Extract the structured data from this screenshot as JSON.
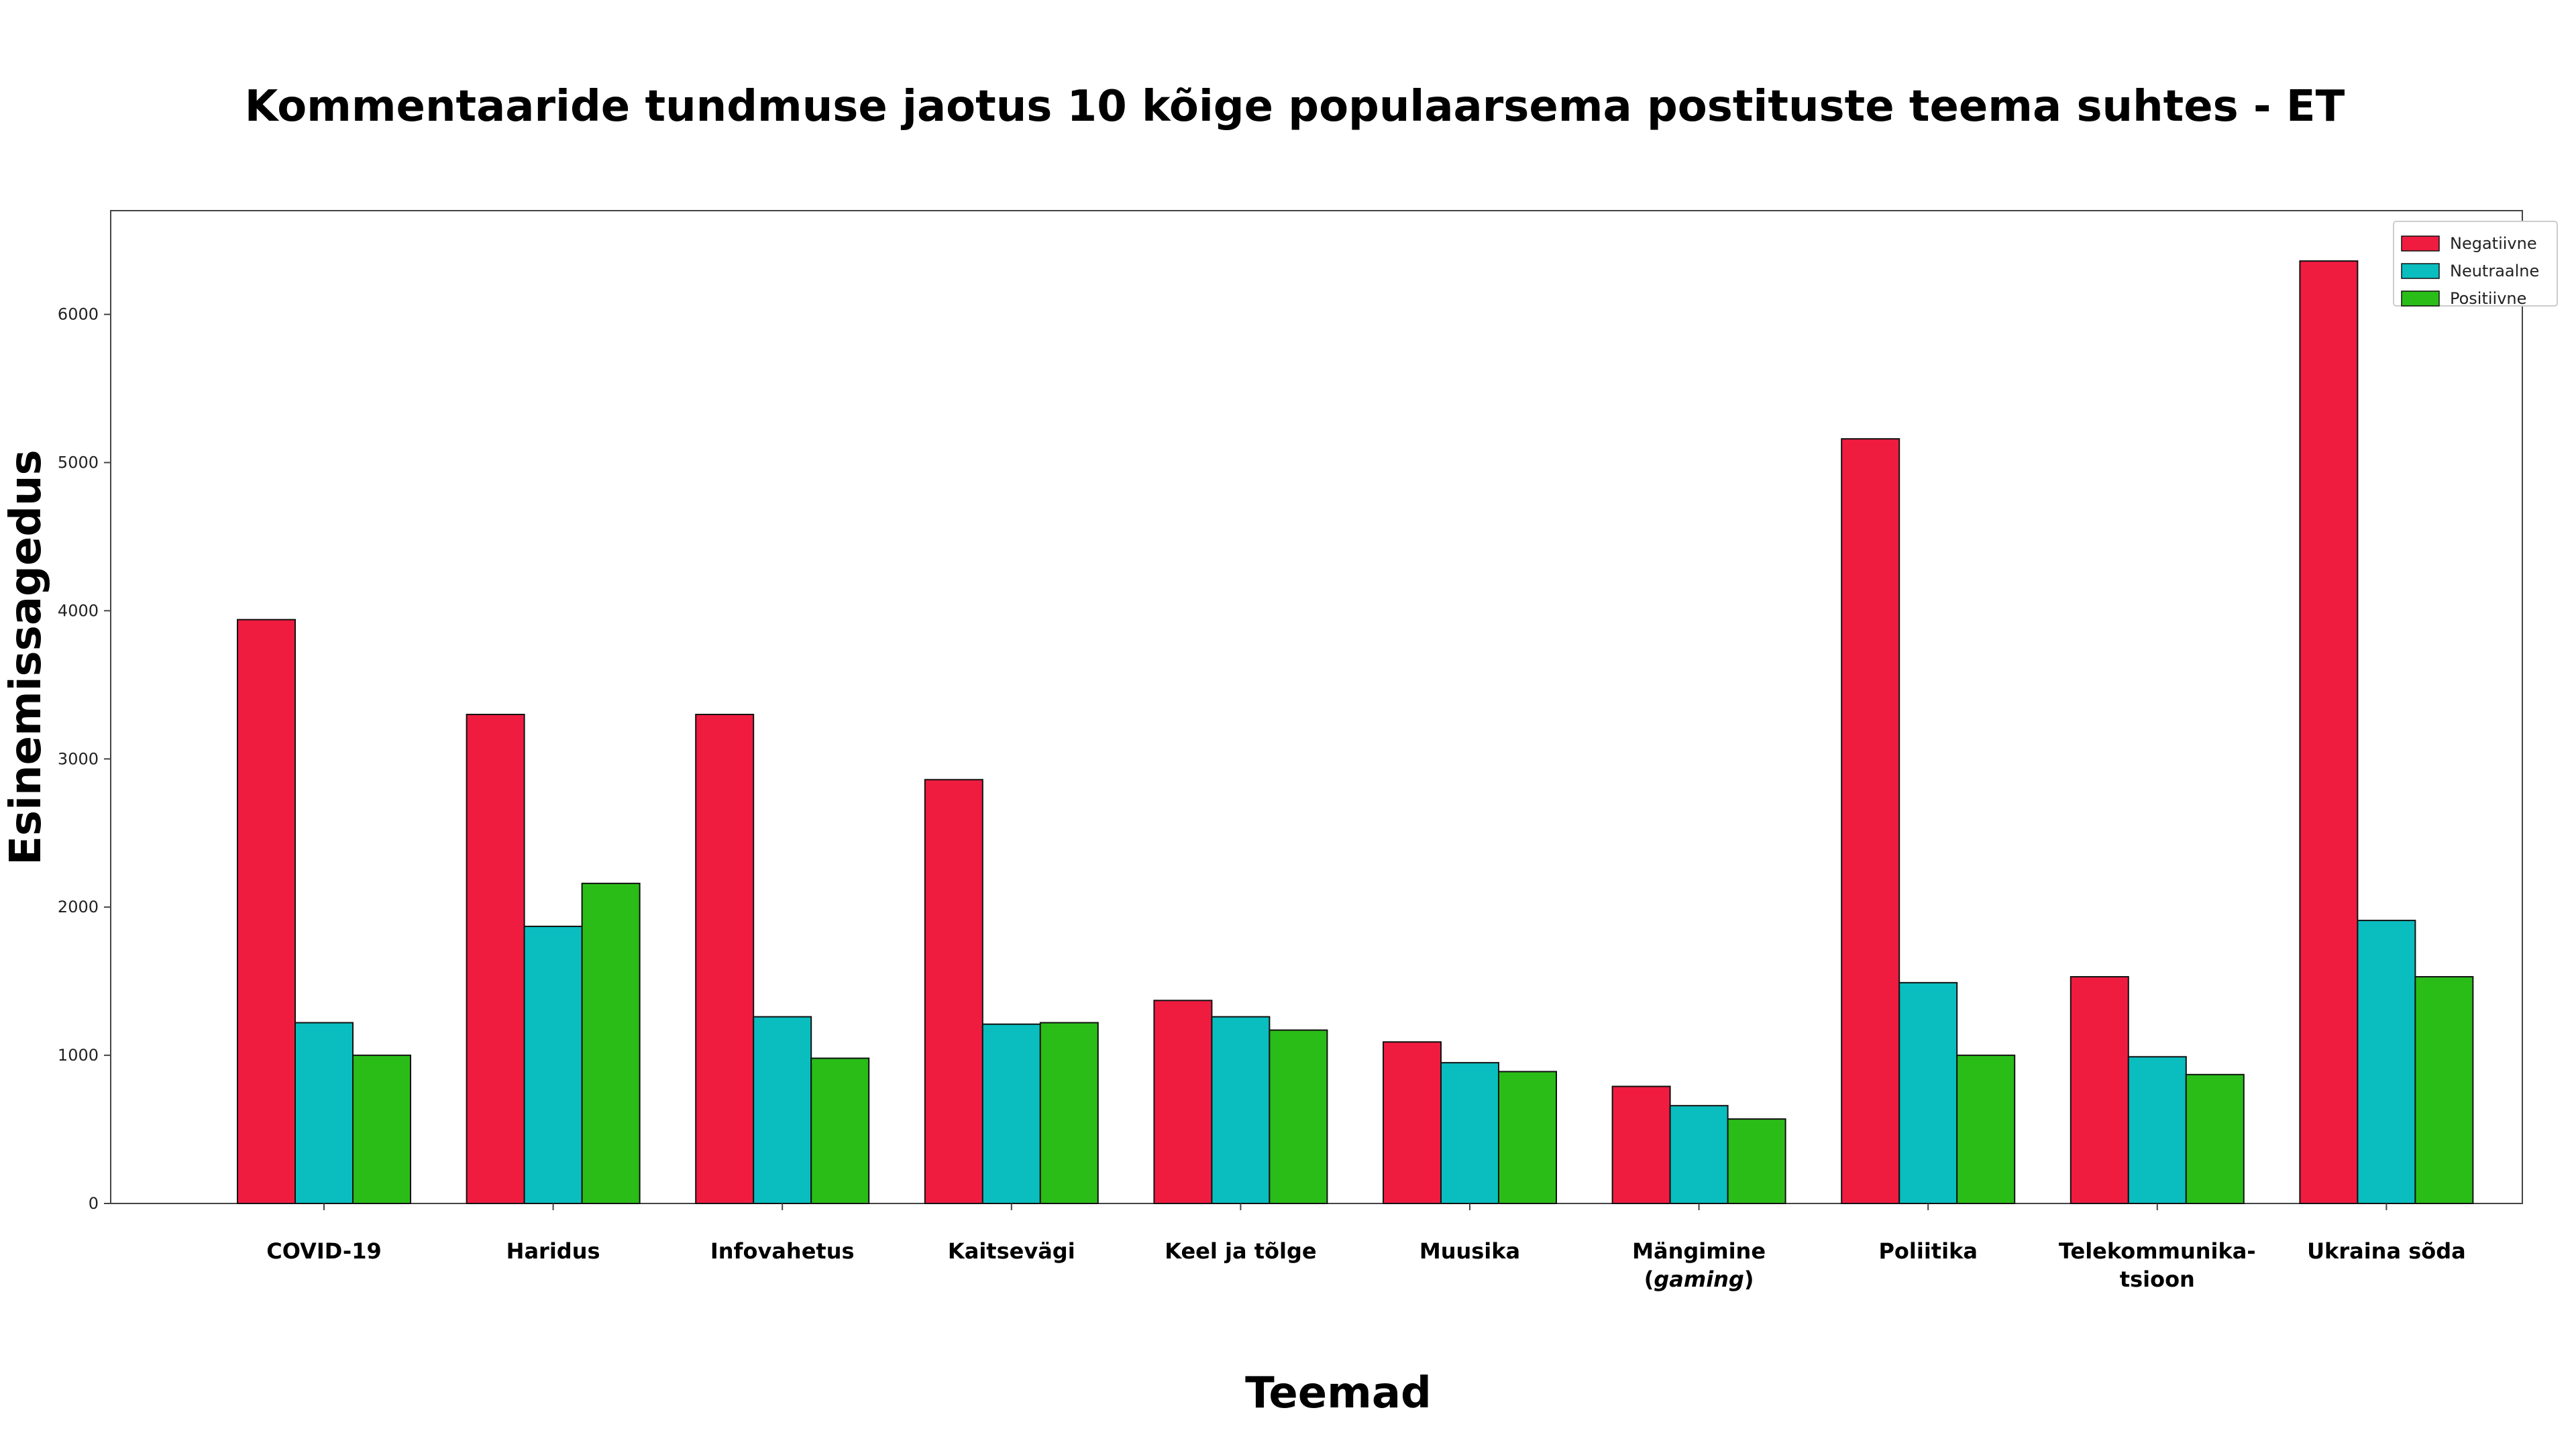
{
  "chart_data": {
    "type": "bar",
    "title": "Kommentaaride tundmuse jaotus 10 kõige populaarsema postituste teema suhtes - ET",
    "xlabel": "Teemad",
    "ylabel": "Esinemissagedus",
    "ylim": [
      0,
      6700
    ],
    "yticks": [
      0,
      1000,
      2000,
      3000,
      4000,
      5000,
      6000
    ],
    "grid": false,
    "legend_position": "top-right",
    "categories": [
      "COVID-19",
      "Haridus",
      "Infovahetus",
      "Kaitsevägi",
      "Keel ja tõlge",
      "Muusika",
      "Mängimine (gaming)",
      "Poliitika",
      "Telekommunika-tsioon",
      "Ukraina sõda"
    ],
    "category_lines": [
      [
        {
          "text": "COVID-19"
        }
      ],
      [
        {
          "text": "Haridus"
        }
      ],
      [
        {
          "text": "Infovahetus"
        }
      ],
      [
        {
          "text": "Kaitsevägi"
        }
      ],
      [
        {
          "text": "Keel ja tõlge"
        }
      ],
      [
        {
          "text": "Muusika"
        }
      ],
      [
        {
          "text": "Mängimine"
        },
        {
          "text": "(",
          "parts": [
            {
              "text": "("
            },
            {
              "text": "gaming",
              "italic": true
            },
            {
              "text": ")"
            }
          ]
        }
      ],
      [
        {
          "text": "Poliitika"
        }
      ],
      [
        {
          "text": "Telekommunika-"
        },
        {
          "text": "tsioon"
        }
      ],
      [
        {
          "text": "Ukraina sõda"
        }
      ]
    ],
    "series": [
      {
        "name": "Negatiivne",
        "color": "#F01C40",
        "values": [
          3940,
          3300,
          3300,
          2860,
          1370,
          1090,
          790,
          5160,
          1530,
          6360
        ]
      },
      {
        "name": "Neutraalne",
        "color": "#0ABDBF",
        "values": [
          1220,
          1870,
          1260,
          1210,
          1260,
          950,
          660,
          1490,
          990,
          1910
        ]
      },
      {
        "name": "Positiivne",
        "color": "#2ABD18",
        "values": [
          1000,
          2160,
          980,
          1220,
          1170,
          890,
          570,
          1000,
          870,
          1530
        ]
      }
    ]
  }
}
